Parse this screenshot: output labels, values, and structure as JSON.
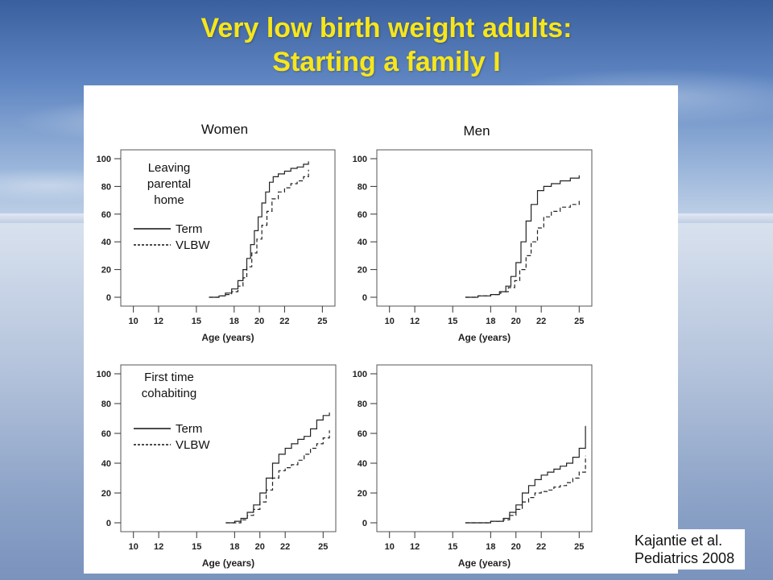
{
  "slide": {
    "title_line1": "Very low birth weight adults:",
    "title_line2": "Starting a family I",
    "citation_line1": "Kajantie et al.",
    "citation_line2": "Pediatrics 2008"
  },
  "chart_data": [
    {
      "type": "line",
      "title": "Women",
      "annotation": [
        "Leaving",
        "parental",
        "home"
      ],
      "legend": {
        "term": "Term",
        "vlbw": "VLBW"
      },
      "xlabel": "Age (years)",
      "xticks": [
        10,
        12,
        15,
        18,
        20,
        22,
        25
      ],
      "yticks": [
        0,
        20,
        40,
        60,
        80,
        100
      ],
      "xlim": [
        9,
        26
      ],
      "ylim": [
        0,
        100
      ],
      "series": [
        {
          "name": "Term",
          "style": "solid",
          "x": [
            16,
            16.8,
            17.3,
            17.8,
            18.3,
            18.7,
            19,
            19.3,
            19.6,
            19.9,
            20.2,
            20.5,
            20.8,
            21.1,
            21.5,
            22,
            22.5,
            23,
            23.5,
            23.9
          ],
          "y": [
            0,
            1,
            3,
            6,
            12,
            20,
            28,
            38,
            48,
            58,
            68,
            76,
            83,
            87,
            89,
            91,
            93,
            94,
            96,
            98
          ]
        },
        {
          "name": "VLBW",
          "style": "dashed",
          "x": [
            16,
            16.8,
            17.3,
            17.8,
            18.3,
            18.7,
            19,
            19.4,
            19.8,
            20.2,
            20.6,
            21,
            21.5,
            22,
            22.5,
            23,
            23.5,
            23.9
          ],
          "y": [
            0,
            1,
            2,
            4,
            8,
            14,
            22,
            32,
            42,
            52,
            62,
            71,
            76,
            79,
            82,
            84,
            87,
            92
          ]
        }
      ]
    },
    {
      "type": "line",
      "title": "Men",
      "xlabel": "Age (years)",
      "xticks": [
        10,
        12,
        15,
        18,
        20,
        22,
        25
      ],
      "yticks": [
        0,
        20,
        40,
        60,
        80,
        100
      ],
      "xlim": [
        9,
        26
      ],
      "ylim": [
        0,
        100
      ],
      "series": [
        {
          "name": "Term",
          "style": "solid",
          "x": [
            16,
            17,
            18,
            18.7,
            19.2,
            19.6,
            20,
            20.4,
            20.8,
            21.2,
            21.7,
            22.2,
            22.8,
            23.5,
            24.3,
            25
          ],
          "y": [
            0,
            1,
            2,
            4,
            8,
            15,
            25,
            40,
            55,
            67,
            77,
            80,
            82,
            84,
            86,
            88
          ]
        },
        {
          "name": "VLBW",
          "style": "dashed",
          "x": [
            16,
            17,
            18,
            18.8,
            19.4,
            19.9,
            20.3,
            20.8,
            21.2,
            21.7,
            22.2,
            22.8,
            23.5,
            24.3,
            25
          ],
          "y": [
            0,
            1,
            2,
            4,
            7,
            12,
            20,
            30,
            40,
            50,
            58,
            62,
            65,
            67,
            70
          ]
        }
      ]
    },
    {
      "type": "line",
      "title": "",
      "annotation": [
        "First time",
        "cohabiting"
      ],
      "legend": {
        "term": "Term",
        "vlbw": "VLBW"
      },
      "xlabel": "Age (years)",
      "xticks": [
        10,
        12,
        15,
        18,
        20,
        22,
        25
      ],
      "yticks": [
        0,
        20,
        40,
        60,
        80,
        100
      ],
      "xlim": [
        9,
        26
      ],
      "ylim": [
        0,
        100
      ],
      "series": [
        {
          "name": "Term",
          "style": "solid",
          "x": [
            17.3,
            18,
            18.5,
            19,
            19.5,
            20,
            20.5,
            21,
            21.5,
            22,
            22.5,
            23,
            23.5,
            24,
            24.5,
            25,
            25.5
          ],
          "y": [
            0,
            1,
            3,
            7,
            12,
            20,
            30,
            40,
            46,
            50,
            53,
            56,
            58,
            63,
            69,
            72,
            74
          ]
        },
        {
          "name": "VLBW",
          "style": "dashed",
          "x": [
            17.3,
            18,
            18.5,
            19,
            19.5,
            20,
            20.5,
            21,
            21.5,
            22,
            22.5,
            23,
            23.5,
            24,
            24.5,
            25,
            25.5
          ],
          "y": [
            0,
            0,
            2,
            5,
            9,
            14,
            22,
            30,
            35,
            37,
            39,
            42,
            46,
            50,
            53,
            57,
            62
          ]
        }
      ]
    },
    {
      "type": "line",
      "title": "",
      "xlabel": "Age (years)",
      "xticks": [
        10,
        12,
        15,
        18,
        20,
        22,
        25
      ],
      "yticks": [
        0,
        20,
        40,
        60,
        80,
        100
      ],
      "xlim": [
        9,
        26
      ],
      "ylim": [
        0,
        100
      ],
      "series": [
        {
          "name": "Term",
          "style": "solid",
          "x": [
            16,
            17,
            18,
            19,
            19.5,
            20,
            20.5,
            21,
            21.5,
            22,
            22.5,
            23,
            23.5,
            24,
            24.5,
            25,
            25.5
          ],
          "y": [
            0,
            0,
            1,
            3,
            7,
            12,
            20,
            25,
            29,
            32,
            34,
            36,
            38,
            40,
            44,
            50,
            65
          ]
        },
        {
          "name": "VLBW",
          "style": "dashed",
          "x": [
            16,
            17,
            18,
            19,
            19.5,
            20,
            20.5,
            21,
            21.5,
            22,
            22.5,
            23,
            23.5,
            24,
            24.5,
            25,
            25.5
          ],
          "y": [
            0,
            0,
            1,
            2,
            5,
            9,
            14,
            17,
            20,
            21,
            22,
            24,
            25,
            27,
            30,
            34,
            45
          ]
        }
      ]
    }
  ]
}
